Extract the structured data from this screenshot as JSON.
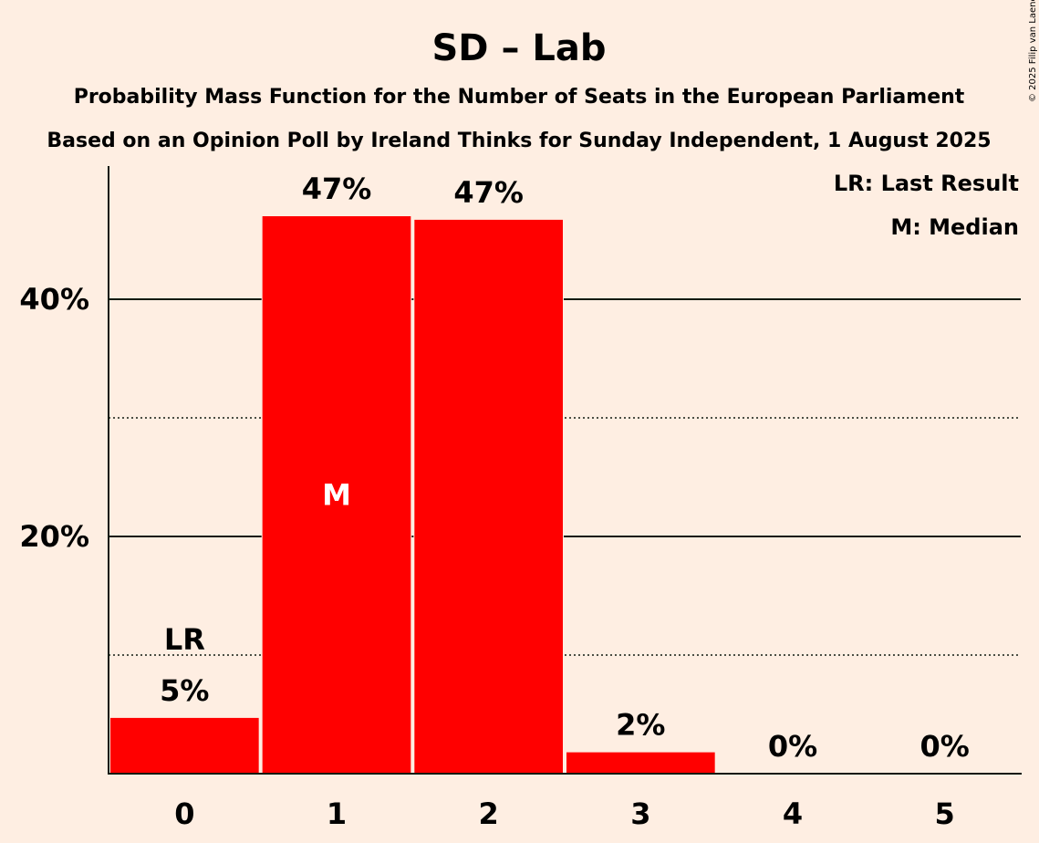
{
  "chart_data": {
    "type": "bar",
    "title": "SD – Lab",
    "subtitle": "Probability Mass Function for the Number of Seats in the European Parliament",
    "subtitle2": "Based on an Opinion Poll by Ireland Thinks for Sunday Independent, 1 August 2025",
    "copyright": "© 2025 Filip van Laenen",
    "categories": [
      "0",
      "1",
      "2",
      "3",
      "4",
      "5"
    ],
    "values": [
      4.7,
      47.0,
      46.7,
      1.8,
      0.0,
      0.0
    ],
    "value_labels": [
      "5%",
      "47%",
      "47%",
      "2%",
      "0%",
      "0%"
    ],
    "ylim": [
      0,
      50
    ],
    "y_ticks": [
      {
        "value": 20,
        "label": "20%"
      },
      {
        "value": 40,
        "label": "40%"
      }
    ],
    "y_dotted_gridlines": [
      10,
      30
    ],
    "bar_color": "#FF0000",
    "last_result": {
      "index": 0,
      "label": "LR"
    },
    "median": {
      "index": 1,
      "label": "M"
    },
    "legend": [
      "LR: Last Result",
      "M: Median"
    ],
    "legend_position": "top-right"
  }
}
